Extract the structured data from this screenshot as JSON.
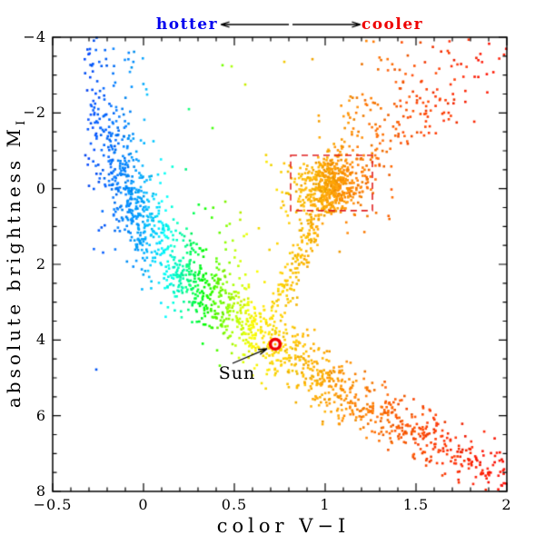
{
  "annotations": {
    "hotter": {
      "text": "hotter",
      "color": "#0000ee"
    },
    "cooler": {
      "text": "cooler",
      "color": "#ee0000"
    },
    "arrow_color": "#000000"
  },
  "axes": {
    "x": {
      "title": "color V−I",
      "tick_values": [
        -0.5,
        0,
        0.5,
        1,
        1.5,
        2
      ],
      "tick_labels": [
        "−0.5",
        "0",
        "0.5",
        "1",
        "1.5",
        "2"
      ],
      "minor_step": 0.1
    },
    "y": {
      "title_prefix": "absolute brightness M",
      "title_subscript": "I",
      "tick_values": [
        -4,
        -2,
        0,
        2,
        4,
        6,
        8
      ],
      "tick_labels": [
        "−4",
        "−2",
        "0",
        "2",
        "4",
        "6",
        "8"
      ],
      "minor_step": 0.5
    }
  },
  "chart_data": {
    "type": "scatter",
    "xlabel": "color V−I",
    "ylabel": "absolute brightness M_I",
    "xlim": [
      -0.5,
      2.0
    ],
    "ylim": [
      8,
      -4
    ],
    "y_axis_inverted": true,
    "grid": false,
    "marker_size_px": 2.6,
    "random_seed": 20240601,
    "color_by_x_hue_stops": [
      [
        -0.5,
        228
      ],
      [
        -0.3,
        222
      ],
      [
        -0.15,
        212
      ],
      [
        0,
        200
      ],
      [
        0.1,
        183
      ],
      [
        0.2,
        163
      ],
      [
        0.3,
        132
      ],
      [
        0.4,
        100
      ],
      [
        0.5,
        78
      ],
      [
        0.6,
        60
      ],
      [
        0.7,
        52
      ],
      [
        0.85,
        45
      ],
      [
        1.0,
        39
      ],
      [
        1.2,
        30
      ],
      [
        1.5,
        17
      ],
      [
        1.8,
        8
      ],
      [
        2.0,
        3
      ]
    ],
    "branches": {
      "main_sequence": {
        "ridge": [
          [
            -0.33,
            -2.6
          ],
          [
            -0.2,
            -0.9
          ],
          [
            -0.1,
            0.1
          ],
          [
            0,
            0.9
          ],
          [
            0.1,
            1.5
          ],
          [
            0.2,
            2.0
          ],
          [
            0.3,
            2.5
          ],
          [
            0.4,
            2.9
          ],
          [
            0.5,
            3.3
          ],
          [
            0.6,
            3.7
          ],
          [
            0.72,
            4.1
          ],
          [
            0.85,
            4.6
          ],
          [
            1.0,
            5.1
          ],
          [
            1.2,
            5.7
          ],
          [
            1.4,
            6.2
          ],
          [
            1.6,
            6.7
          ],
          [
            1.8,
            7.2
          ],
          [
            2.0,
            7.7
          ]
        ],
        "segments": [
          {
            "c_range": [
              -0.33,
              -0.2
            ],
            "n": 70,
            "sigma": 1.25
          },
          {
            "c_range": [
              -0.2,
              0.05
            ],
            "n": 330,
            "sigma": 0.8
          },
          {
            "c_range": [
              0.05,
              0.35
            ],
            "n": 280,
            "sigma": 0.6
          },
          {
            "c_range": [
              0.35,
              0.75
            ],
            "n": 330,
            "sigma": 0.5
          },
          {
            "c_range": [
              0.75,
              1.1
            ],
            "n": 230,
            "sigma": 0.45
          },
          {
            "c_range": [
              1.1,
              1.5
            ],
            "n": 180,
            "sigma": 0.4
          },
          {
            "c_range": [
              1.5,
              2.0
            ],
            "n": 170,
            "sigma": 0.38
          }
        ]
      },
      "bright_blue_tail": {
        "n": 60,
        "c_range": [
          -0.32,
          0.02
        ],
        "m_range": [
          -4,
          -1.2
        ]
      },
      "subgiant_branch": {
        "path": [
          [
            0.74,
            3.1
          ],
          [
            0.82,
            2.3
          ],
          [
            0.9,
            1.4
          ],
          [
            0.96,
            0.7
          ]
        ],
        "n": 150,
        "c_jitter": 0.045,
        "m_jitter": 0.28
      },
      "red_clump": {
        "center": [
          1.02,
          -0.12
        ],
        "n": 400,
        "sigma_c": 0.075,
        "sigma_m": 0.33,
        "halo_n": 130,
        "halo_sigma_c": 0.15,
        "halo_sigma_m": 0.62
      },
      "upper_giant_fan": {
        "n": 270,
        "m_bottom": 0.4,
        "m_top": -3.85,
        "c_lo_start": 0.97,
        "c_lo_slope": 0.25,
        "c_width_start": 0.12,
        "c_width_slope": 0.9,
        "m_jitter": 0.25
      },
      "field_scatter": {
        "n": 35,
        "c_range": [
          0.05,
          0.75
        ],
        "dm_above_ridge": [
          0.8,
          3.0
        ]
      },
      "outliers": [
        [
          -0.26,
          4.78
        ],
        [
          0.435,
          -3.26
        ],
        [
          0.485,
          -3.23
        ],
        [
          0.775,
          -3.35
        ],
        [
          0.93,
          -3.42
        ],
        [
          0.56,
          -2.75
        ],
        [
          0.25,
          -2.1
        ],
        [
          0.38,
          -1.6
        ]
      ]
    },
    "sun": {
      "x": 0.725,
      "y": 4.11,
      "label": "Sun",
      "ring_color": "#ee0000",
      "core_color": "#ffaa00"
    },
    "highlight_box": {
      "x": [
        0.81,
        1.26
      ],
      "y": [
        -0.88,
        0.58
      ],
      "color": "#e02222",
      "style": "dashed"
    }
  }
}
